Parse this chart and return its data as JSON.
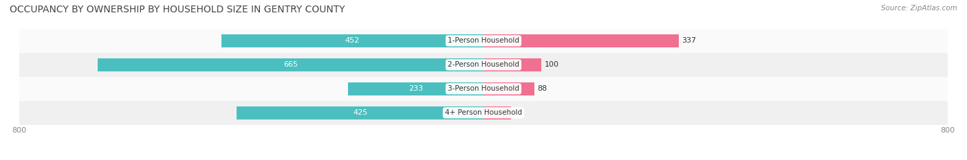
{
  "title": "OCCUPANCY BY OWNERSHIP BY HOUSEHOLD SIZE IN GENTRY COUNTY",
  "source": "Source: ZipAtlas.com",
  "categories": [
    "1-Person Household",
    "2-Person Household",
    "3-Person Household",
    "4+ Person Household"
  ],
  "owner_values": [
    452,
    665,
    233,
    425
  ],
  "renter_values": [
    337,
    100,
    88,
    47
  ],
  "owner_color": "#4BBFBF",
  "renter_color": "#F07090",
  "bar_bg_color": "#F0F0F0",
  "row_bg_colors": [
    "#FAFAFA",
    "#F0F0F0"
  ],
  "x_min": -800,
  "x_max": 800,
  "x_ticks": [
    -800,
    800
  ],
  "x_tick_labels": [
    "800",
    "800"
  ],
  "label_color_owner": "white",
  "label_color_renter": "#555555",
  "title_fontsize": 10,
  "source_fontsize": 7.5,
  "bar_label_fontsize": 8,
  "category_fontsize": 7.5,
  "legend_fontsize": 8,
  "bar_height": 0.55,
  "fig_width": 14.06,
  "fig_height": 2.33,
  "dpi": 100
}
